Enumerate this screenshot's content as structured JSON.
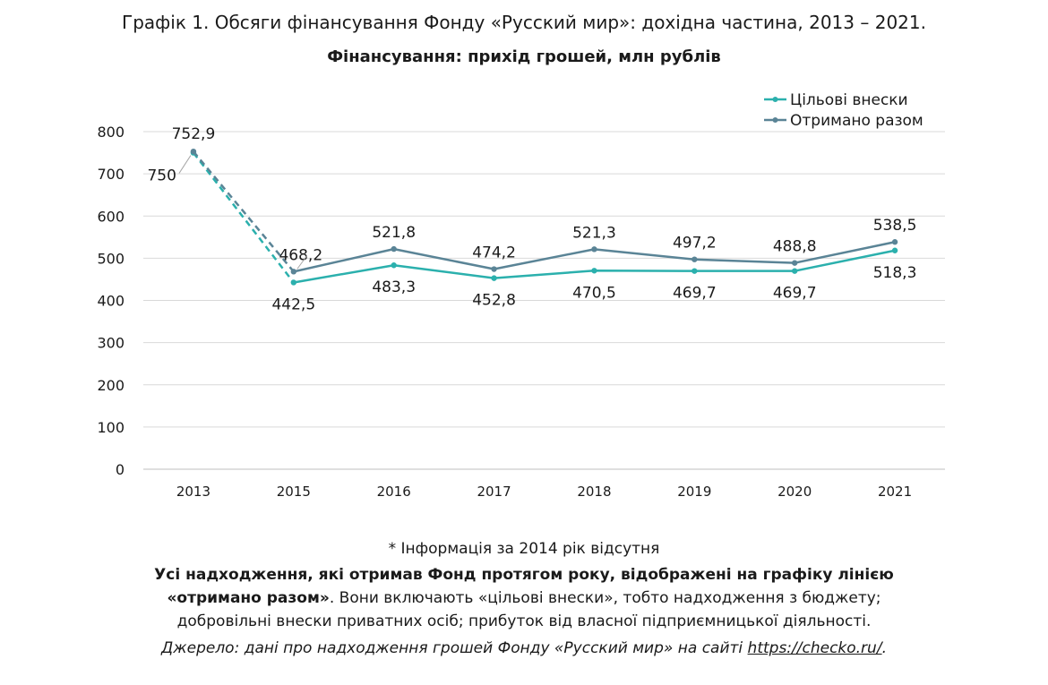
{
  "chart_data": {
    "type": "line",
    "title": "Графік 1. Обсяги фінансування Фонду «Русский мир»: дохідна частина, 2013 – 2021.",
    "subtitle": "Фінансування: прихід грошей, млн рублів",
    "categories": [
      "2013",
      "2015",
      "2016",
      "2017",
      "2018",
      "2019",
      "2020",
      "2021"
    ],
    "ylim": [
      0,
      800
    ],
    "yticks": [
      "0",
      "100",
      "200",
      "300",
      "400",
      "500",
      "600",
      "700",
      "800"
    ],
    "grid": true,
    "legend_position": "top-right",
    "series": [
      {
        "name": "Цільові внески",
        "color": "#2bb0ad",
        "values": [
          750,
          442.5,
          483.3,
          452.8,
          470.5,
          469.7,
          469.7,
          518.3
        ],
        "labels": [
          "750",
          "442,5",
          "483,3",
          "452,8",
          "470,5",
          "469,7",
          "469,7",
          "518,3"
        ]
      },
      {
        "name": "Отримано разом",
        "color": "#5a8496",
        "values": [
          752.9,
          468.2,
          521.8,
          474.2,
          521.3,
          497.2,
          488.8,
          538.5
        ],
        "labels": [
          "752,9",
          "468,2",
          "521,8",
          "474,2",
          "521,3",
          "497,2",
          "488,8",
          "538,5"
        ]
      }
    ],
    "dashed_segment": "2013–2015"
  },
  "footer": {
    "note": "* Інформація за 2014 рік відсутня",
    "explain_bold_1": "Усі надходження, які отримав Фонд протягом року, відображені на графіку лінією",
    "explain_bold_2": "«отримано разом»",
    "explain_rest_1": ". Вони включають «цільові внески», тобто надходження з бюджету;",
    "explain_rest_2": "добровільні внески приватних осіб; прибуток від власної підприємницької діяльності.",
    "source_text": "Джерело: дані про надходження грошей Фонду «Русский мир» на сайті ",
    "source_link": "https://checko.ru/",
    "source_end": "."
  }
}
